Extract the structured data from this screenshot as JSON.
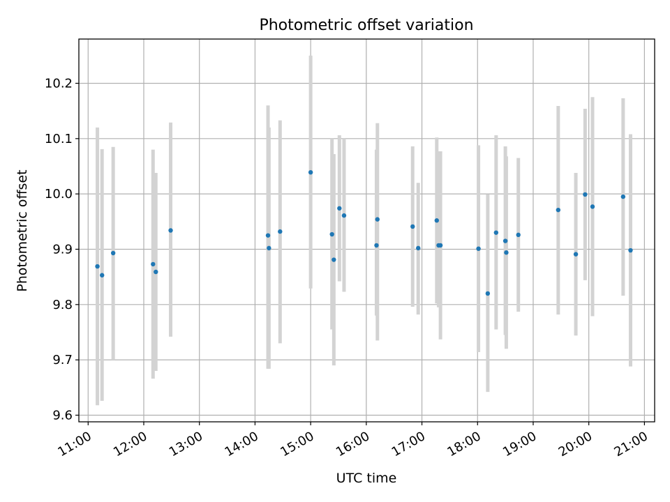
{
  "chart_data": {
    "type": "scatter",
    "title": "Photometric offset variation",
    "xlabel": "UTC time",
    "ylabel": "Photometric offset",
    "x_tick_labels": [
      "11:00",
      "12:00",
      "13:00",
      "14:00",
      "15:00",
      "16:00",
      "17:00",
      "18:00",
      "19:00",
      "20:00",
      "21:00"
    ],
    "y_tick_labels": [
      "9.6",
      "9.7",
      "9.8",
      "9.9",
      "10.0",
      "10.1",
      "10.2"
    ],
    "xlim": [
      "10:50",
      "21:11"
    ],
    "ylim": [
      9.588,
      10.28
    ],
    "grid": true,
    "colors": {
      "point": "#1f77b4",
      "errorbar": "#d3d3d3",
      "grid": "#b0b0b0"
    },
    "points": [
      {
        "t": "11:10",
        "y": 9.869,
        "ylo": 9.618,
        "yhi": 10.12
      },
      {
        "t": "11:15",
        "y": 9.853,
        "ylo": 9.626,
        "yhi": 10.081
      },
      {
        "t": "11:27",
        "y": 9.893,
        "ylo": 9.7,
        "yhi": 10.085
      },
      {
        "t": "12:10",
        "y": 9.873,
        "ylo": 9.666,
        "yhi": 10.08
      },
      {
        "t": "12:13",
        "y": 9.859,
        "ylo": 9.68,
        "yhi": 10.038
      },
      {
        "t": "12:29",
        "y": 9.934,
        "ylo": 9.742,
        "yhi": 10.129
      },
      {
        "t": "14:14",
        "y": 9.925,
        "ylo": 9.684,
        "yhi": 10.16
      },
      {
        "t": "14:15",
        "y": 9.902,
        "ylo": 9.684,
        "yhi": 10.12
      },
      {
        "t": "14:27",
        "y": 9.932,
        "ylo": 9.73,
        "yhi": 10.133
      },
      {
        "t": "15:00",
        "y": 10.039,
        "ylo": 9.829,
        "yhi": 10.25
      },
      {
        "t": "15:23",
        "y": 9.927,
        "ylo": 9.755,
        "yhi": 10.1
      },
      {
        "t": "15:25",
        "y": 9.881,
        "ylo": 9.69,
        "yhi": 10.072
      },
      {
        "t": "15:31",
        "y": 9.974,
        "ylo": 9.842,
        "yhi": 10.106
      },
      {
        "t": "15:36",
        "y": 9.961,
        "ylo": 9.823,
        "yhi": 10.1
      },
      {
        "t": "16:11",
        "y": 9.907,
        "ylo": 9.78,
        "yhi": 10.08
      },
      {
        "t": "16:12",
        "y": 9.954,
        "ylo": 9.735,
        "yhi": 10.128
      },
      {
        "t": "16:50",
        "y": 9.941,
        "ylo": 9.796,
        "yhi": 10.086
      },
      {
        "t": "16:56",
        "y": 9.902,
        "ylo": 9.782,
        "yhi": 10.02
      },
      {
        "t": "17:16",
        "y": 9.952,
        "ylo": 9.802,
        "yhi": 10.102
      },
      {
        "t": "17:18",
        "y": 9.907,
        "ylo": 9.795,
        "yhi": 10.077
      },
      {
        "t": "17:20",
        "y": 9.907,
        "ylo": 9.737,
        "yhi": 10.077
      },
      {
        "t": "18:01",
        "y": 9.901,
        "ylo": 9.714,
        "yhi": 10.088
      },
      {
        "t": "18:11",
        "y": 9.82,
        "ylo": 9.642,
        "yhi": 9.999
      },
      {
        "t": "18:20",
        "y": 9.93,
        "ylo": 9.755,
        "yhi": 10.106
      },
      {
        "t": "18:30",
        "y": 9.915,
        "ylo": 9.745,
        "yhi": 10.086
      },
      {
        "t": "18:31",
        "y": 9.894,
        "ylo": 9.72,
        "yhi": 10.068
      },
      {
        "t": "18:44",
        "y": 9.926,
        "ylo": 9.787,
        "yhi": 10.065
      },
      {
        "t": "19:27",
        "y": 9.971,
        "ylo": 9.782,
        "yhi": 10.159
      },
      {
        "t": "19:46",
        "y": 9.891,
        "ylo": 9.744,
        "yhi": 10.038
      },
      {
        "t": "19:56",
        "y": 9.999,
        "ylo": 9.844,
        "yhi": 10.154
      },
      {
        "t": "20:04",
        "y": 9.977,
        "ylo": 9.779,
        "yhi": 10.175
      },
      {
        "t": "20:37",
        "y": 9.995,
        "ylo": 9.816,
        "yhi": 10.173
      },
      {
        "t": "20:45",
        "y": 9.898,
        "ylo": 9.688,
        "yhi": 10.108
      }
    ]
  }
}
